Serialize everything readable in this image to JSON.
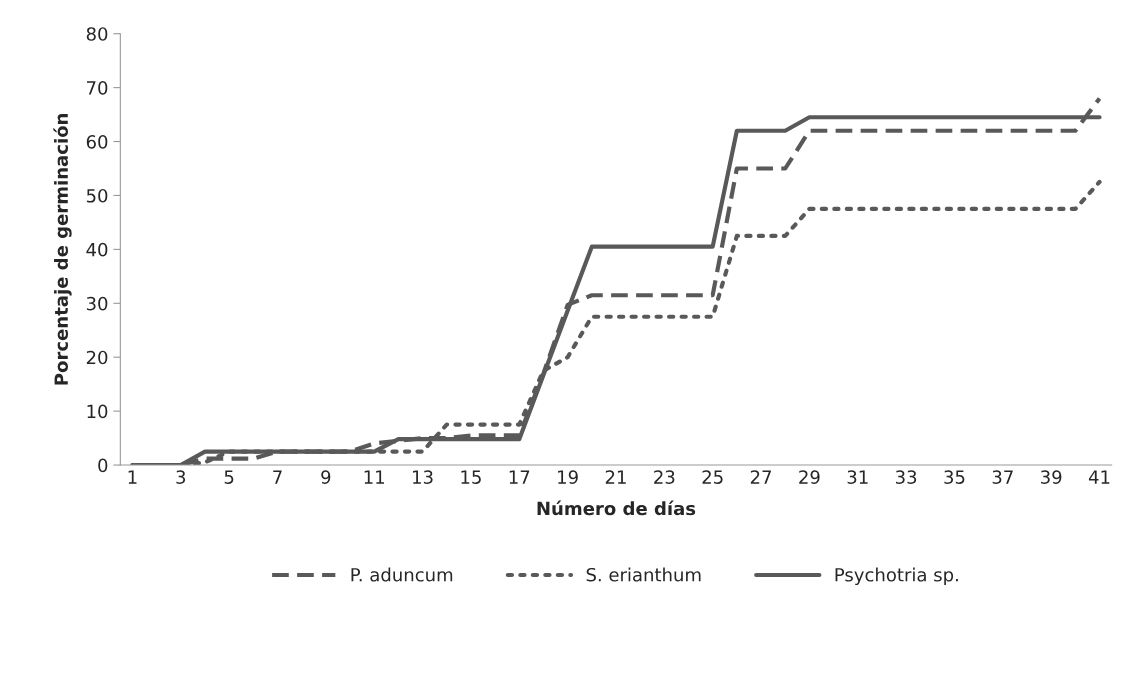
{
  "chart_data": {
    "type": "line",
    "xlabel": "Número de días",
    "ylabel": "Porcentaje de germinación",
    "categories": [
      "1",
      null,
      "3",
      null,
      "5",
      null,
      "7",
      null,
      "9",
      null,
      "11",
      null,
      "13",
      null,
      "15",
      null,
      "17",
      null,
      "19",
      null,
      "21",
      null,
      "23",
      null,
      "25",
      null,
      "27",
      null,
      "29",
      null,
      "31",
      null,
      "33",
      null,
      "35",
      null,
      "37",
      null,
      "39",
      null,
      "41"
    ],
    "ylim": [
      0,
      80
    ],
    "yticks": [
      0,
      10,
      20,
      30,
      40,
      50,
      60,
      70,
      80
    ],
    "grid": false,
    "legend": "bottom",
    "marker": "none",
    "series": [
      {
        "name": "P. aduncum",
        "color": "#595959",
        "line_style": "dashed",
        "values": [
          0,
          0,
          0,
          1.2,
          1.2,
          1.2,
          2.5,
          2.5,
          2.5,
          2.5,
          4,
          4.5,
          5,
          5,
          5.5,
          5.5,
          5.5,
          17,
          29.7,
          31.5,
          31.5,
          31.5,
          31.5,
          31.5,
          31.5,
          55,
          55,
          55,
          62,
          62,
          62,
          62,
          62,
          62,
          62,
          62,
          62,
          62,
          62,
          62,
          68
        ]
      },
      {
        "name": "S. erianthum",
        "color": "#595959",
        "line_style": "dotted",
        "values": [
          0,
          0,
          0,
          0.5,
          2.5,
          2.5,
          2.5,
          2.5,
          2.5,
          2.5,
          2.5,
          2.5,
          2.5,
          7.5,
          7.5,
          7.5,
          7.5,
          17.5,
          20,
          27.5,
          27.5,
          27.5,
          27.5,
          27.5,
          27.5,
          42.5,
          42.5,
          42.5,
          47.5,
          47.5,
          47.5,
          47.5,
          47.5,
          47.5,
          47.5,
          47.5,
          47.5,
          47.5,
          47.5,
          47.5,
          52.5
        ]
      },
      {
        "name": "Psychotria sp.",
        "color": "#595959",
        "line_style": "solid",
        "values": [
          0,
          0,
          0,
          2.5,
          2.5,
          2.5,
          2.5,
          2.5,
          2.5,
          2.5,
          2.5,
          4.8,
          4.8,
          4.8,
          4.8,
          4.8,
          4.8,
          16.7,
          28.6,
          40.5,
          40.5,
          40.5,
          40.5,
          40.5,
          40.5,
          62,
          62,
          62,
          64.5,
          64.5,
          64.5,
          64.5,
          64.5,
          64.5,
          64.5,
          64.5,
          64.5,
          64.5,
          64.5,
          64.5,
          64.5
        ]
      }
    ]
  }
}
